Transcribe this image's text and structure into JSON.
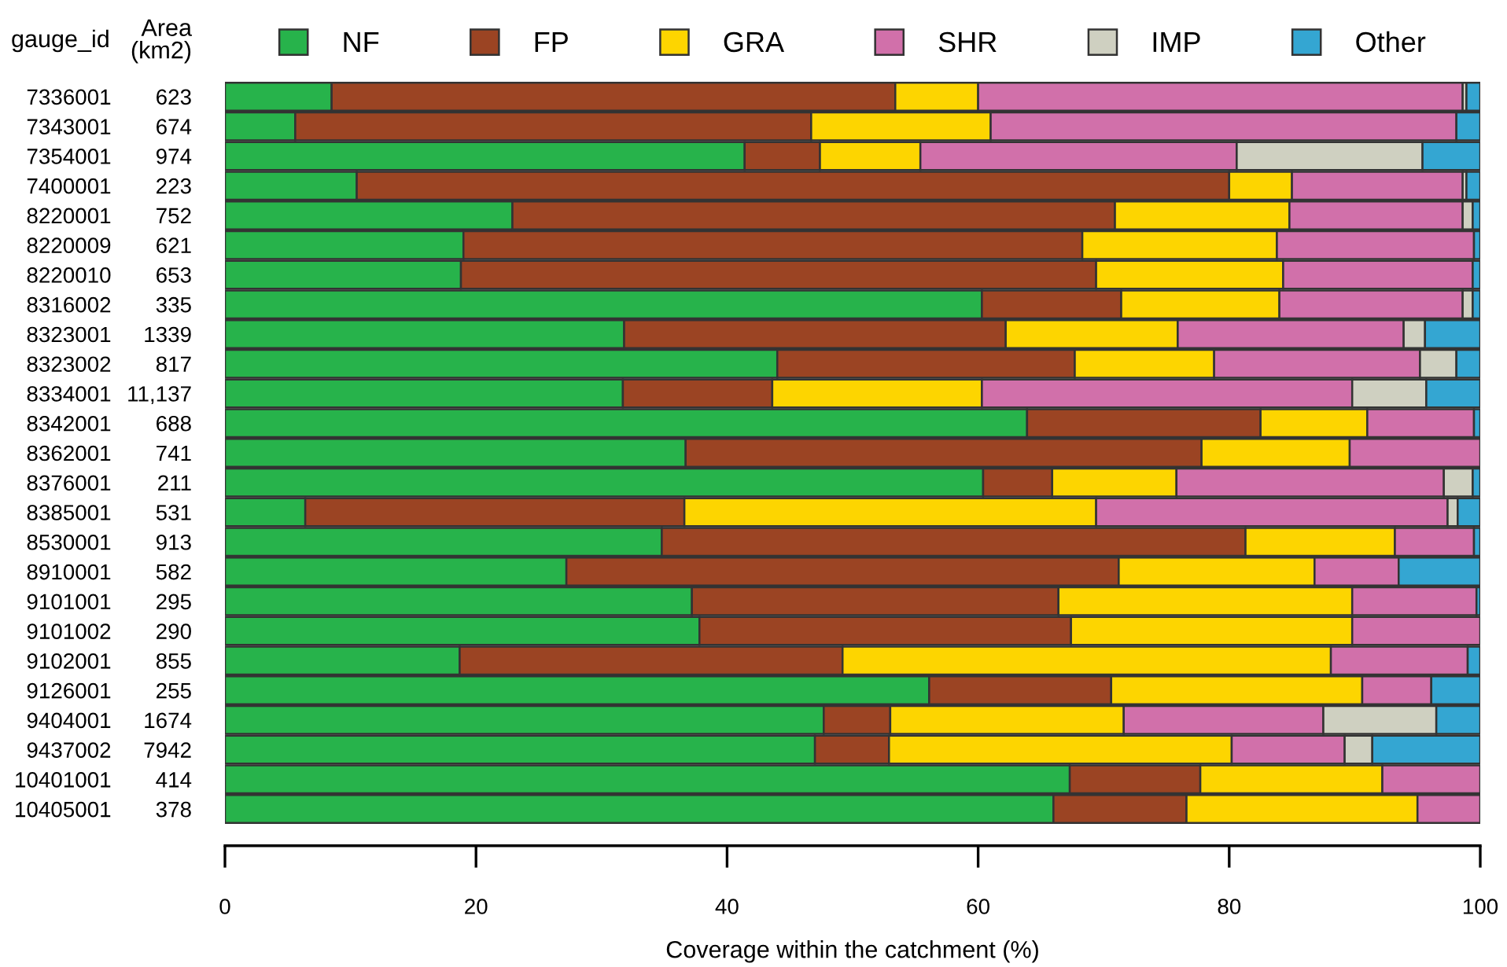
{
  "chart_data": {
    "type": "bar",
    "orientation": "horizontal",
    "stacked": true,
    "xlabel": "Coverage within the catchment (%)",
    "ylabel": "gauge_id",
    "y2label": "Area\n(km2)",
    "categories": [
      "7336001",
      "7343001",
      "7354001",
      "7400001",
      "8220001",
      "8220009",
      "8220010",
      "8316002",
      "8323001",
      "8323002",
      "8334001",
      "8342001",
      "8362001",
      "8376001",
      "8385001",
      "8530001",
      "8910001",
      "9101001",
      "9101002",
      "9102001",
      "9126001",
      "9404001",
      "9437002",
      "10401001",
      "10405001"
    ],
    "y2_categories": [
      "623",
      "674",
      "974",
      "223",
      "752",
      "621",
      "653",
      "335",
      "1339",
      "817",
      "11,137",
      "688",
      "741",
      "211",
      "531",
      "913",
      "582",
      "295",
      "290",
      "855",
      "255",
      "1674",
      "7942",
      "414",
      "378"
    ],
    "xlim": [
      0,
      100
    ],
    "xticks": [
      0,
      20,
      40,
      60,
      80,
      100
    ],
    "grid": false,
    "legend": "top",
    "series": [
      {
        "name": "NF",
        "color": "#27b34b",
        "values": [
          8.5,
          5.6,
          41.4,
          10.5,
          22.9,
          19.0,
          18.8,
          60.3,
          31.8,
          44.0,
          31.7,
          63.9,
          36.7,
          60.4,
          6.4,
          34.8,
          27.2,
          37.2,
          37.8,
          18.7,
          56.1,
          47.7,
          47.0,
          67.3,
          66.0
        ]
      },
      {
        "name": "FP",
        "color": "#9b4423",
        "values": [
          44.9,
          41.1,
          6.0,
          69.5,
          48.0,
          49.3,
          50.6,
          11.1,
          30.4,
          23.7,
          11.9,
          18.6,
          41.1,
          5.5,
          30.2,
          46.5,
          44.0,
          29.2,
          29.6,
          30.5,
          14.5,
          5.3,
          5.9,
          10.4,
          10.6
        ]
      },
      {
        "name": "GRA",
        "color": "#fdd500",
        "values": [
          6.6,
          14.3,
          8.0,
          5.0,
          13.9,
          15.5,
          14.9,
          12.6,
          13.7,
          11.1,
          16.7,
          8.5,
          11.8,
          9.9,
          32.8,
          11.9,
          15.6,
          23.4,
          22.4,
          38.9,
          20.0,
          18.6,
          27.3,
          14.5,
          18.4
        ]
      },
      {
        "name": "SHR",
        "color": "#d170aa",
        "values": [
          38.6,
          37.1,
          25.2,
          13.6,
          13.8,
          15.7,
          15.1,
          14.6,
          18.0,
          16.4,
          29.5,
          8.5,
          10.4,
          21.3,
          28.0,
          6.3,
          6.7,
          9.9,
          10.2,
          10.9,
          5.5,
          15.9,
          9.0,
          7.8,
          5.0
        ]
      },
      {
        "name": "IMP",
        "color": "#cfd0c1",
        "values": [
          0.3,
          0,
          14.8,
          0.3,
          0.8,
          null,
          0,
          0.8,
          1.7,
          2.9,
          5.9,
          0,
          0,
          2.3,
          0.8,
          0,
          0,
          0,
          0,
          0,
          0,
          9.0,
          2.2,
          0,
          0
        ]
      },
      {
        "name": "Other",
        "color": "#34a6d2",
        "values": [
          1.1,
          1.9,
          4.6,
          1.1,
          0.6,
          0.5,
          0.6,
          0.6,
          4.4,
          1.9,
          4.3,
          0.5,
          null,
          0.6,
          1.8,
          0.5,
          6.5,
          0.3,
          null,
          1.0,
          3.9,
          3.5,
          8.6,
          0,
          0
        ]
      }
    ]
  }
}
